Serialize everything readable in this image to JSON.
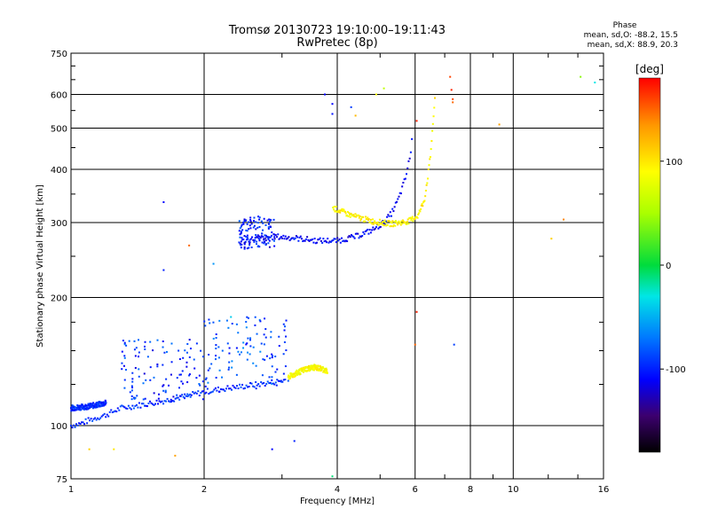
{
  "chart_data": {
    "type": "scatter",
    "title": "Tromsø 20130723 19:10:00–19:11:43",
    "subtitle": "RwPretec (8p)",
    "xlabel": "Frequency [MHz]",
    "ylabel": "Stationary phase Virtual Height [km]",
    "x_scale": "log",
    "y_scale": "log",
    "xlim": [
      1,
      16
    ],
    "ylim": [
      75,
      750
    ],
    "x_ticks": [
      1,
      2,
      4,
      6,
      8,
      10,
      16
    ],
    "x_tick_labels": [
      "1",
      "2",
      "4",
      "6",
      "8",
      "10",
      "16"
    ],
    "y_ticks": [
      75,
      100,
      200,
      300,
      400,
      500,
      600,
      750
    ],
    "y_tick_labels": [
      "75",
      "100",
      "200",
      "300",
      "400",
      "500",
      "600",
      "750"
    ],
    "grid": true,
    "colorbar": {
      "label": "[deg]",
      "range": [
        -180,
        180
      ],
      "ticks": [
        -100,
        0,
        100
      ],
      "tick_labels": [
        "-100",
        "0",
        "100"
      ]
    },
    "phase_stats": {
      "heading": "Phase",
      "line1": "mean, sd,O: -88.2, 15.5",
      "line2": "mean, sd,X:  88.9, 20.3"
    },
    "traces": [
      {
        "name": "",
        "phase": -95,
        "points": [
          [
            1.0,
            100
          ],
          [
            1.05,
            101
          ],
          [
            1.1,
            103
          ],
          [
            1.2,
            106
          ],
          [
            1.3,
            110
          ],
          [
            1.45,
            112
          ],
          [
            1.6,
            114
          ],
          [
            1.8,
            117
          ],
          [
            2.0,
            120
          ],
          [
            2.2,
            122
          ],
          [
            2.5,
            124
          ],
          [
            2.8,
            126
          ],
          [
            3.05,
            128
          ]
        ]
      },
      {
        "name": "",
        "phase": -95,
        "points": [
          [
            1.0,
            110
          ],
          [
            1.1,
            111
          ],
          [
            1.2,
            113
          ]
        ]
      },
      {
        "name": "",
        "phase": -110,
        "points": [
          [
            2.4,
            270
          ],
          [
            2.6,
            275
          ],
          [
            2.9,
            278
          ],
          [
            3.2,
            276
          ],
          [
            3.6,
            272
          ],
          [
            4.0,
            272
          ],
          [
            4.4,
            278
          ],
          [
            4.8,
            288
          ],
          [
            5.1,
            300
          ],
          [
            5.3,
            315
          ],
          [
            5.5,
            340
          ],
          [
            5.7,
            380
          ],
          [
            5.85,
            430
          ],
          [
            5.9,
            470
          ]
        ]
      },
      {
        "name": "",
        "phase": 95,
        "points": [
          [
            3.9,
            325
          ],
          [
            4.3,
            312
          ],
          [
            4.8,
            302
          ],
          [
            5.3,
            298
          ],
          [
            5.8,
            302
          ],
          [
            6.1,
            312
          ],
          [
            6.3,
            340
          ],
          [
            6.4,
            380
          ],
          [
            6.5,
            430
          ],
          [
            6.55,
            480
          ],
          [
            6.6,
            530
          ],
          [
            6.65,
            580
          ]
        ]
      },
      {
        "name": "",
        "phase": 90,
        "points": [
          [
            3.1,
            130
          ],
          [
            3.25,
            133
          ],
          [
            3.4,
            136
          ],
          [
            3.55,
            137
          ],
          [
            3.7,
            136
          ],
          [
            3.8,
            134
          ]
        ]
      }
    ],
    "scatter_clouds": [
      {
        "phase": -95,
        "x_range": [
          1.3,
          2.0
        ],
        "y_range": [
          115,
          160
        ]
      },
      {
        "phase": -85,
        "x_range": [
          2.0,
          3.1
        ],
        "y_range": [
          120,
          180
        ]
      },
      {
        "phase": -100,
        "x_range": [
          2.4,
          2.9
        ],
        "y_range": [
          260,
          310
        ]
      }
    ],
    "isolated_points": [
      {
        "x": 1.62,
        "y": 335,
        "phase": -110
      },
      {
        "x": 1.62,
        "y": 232,
        "phase": -100
      },
      {
        "x": 1.75,
        "y": 150,
        "phase": -90
      },
      {
        "x": 1.85,
        "y": 265,
        "phase": 150
      },
      {
        "x": 2.1,
        "y": 240,
        "phase": -60
      },
      {
        "x": 2.3,
        "y": 180,
        "phase": -40
      },
      {
        "x": 2.85,
        "y": 88,
        "phase": -110
      },
      {
        "x": 3.2,
        "y": 92,
        "phase": -100
      },
      {
        "x": 3.75,
        "y": 600,
        "phase": -110
      },
      {
        "x": 3.9,
        "y": 570,
        "phase": -110
      },
      {
        "x": 3.9,
        "y": 540,
        "phase": -105
      },
      {
        "x": 4.3,
        "y": 560,
        "phase": -90
      },
      {
        "x": 4.4,
        "y": 535,
        "phase": 120
      },
      {
        "x": 4.9,
        "y": 600,
        "phase": 90
      },
      {
        "x": 5.1,
        "y": 620,
        "phase": 60
      },
      {
        "x": 6.05,
        "y": 520,
        "phase": 170
      },
      {
        "x": 6.05,
        "y": 185,
        "phase": 170
      },
      {
        "x": 6.0,
        "y": 155,
        "phase": 150
      },
      {
        "x": 7.2,
        "y": 660,
        "phase": 160
      },
      {
        "x": 7.25,
        "y": 615,
        "phase": 170
      },
      {
        "x": 7.3,
        "y": 585,
        "phase": 160
      },
      {
        "x": 7.3,
        "y": 575,
        "phase": 150
      },
      {
        "x": 7.35,
        "y": 155,
        "phase": -90
      },
      {
        "x": 9.3,
        "y": 510,
        "phase": 130
      },
      {
        "x": 12.2,
        "y": 275,
        "phase": 110
      },
      {
        "x": 13.0,
        "y": 305,
        "phase": 140
      },
      {
        "x": 14.2,
        "y": 660,
        "phase": 40
      },
      {
        "x": 15.3,
        "y": 640,
        "phase": -30
      },
      {
        "x": 1.1,
        "y": 88,
        "phase": 110
      },
      {
        "x": 1.25,
        "y": 88,
        "phase": 100
      },
      {
        "x": 1.72,
        "y": 85,
        "phase": 130
      },
      {
        "x": 3.9,
        "y": 76,
        "phase": -10
      }
    ]
  }
}
